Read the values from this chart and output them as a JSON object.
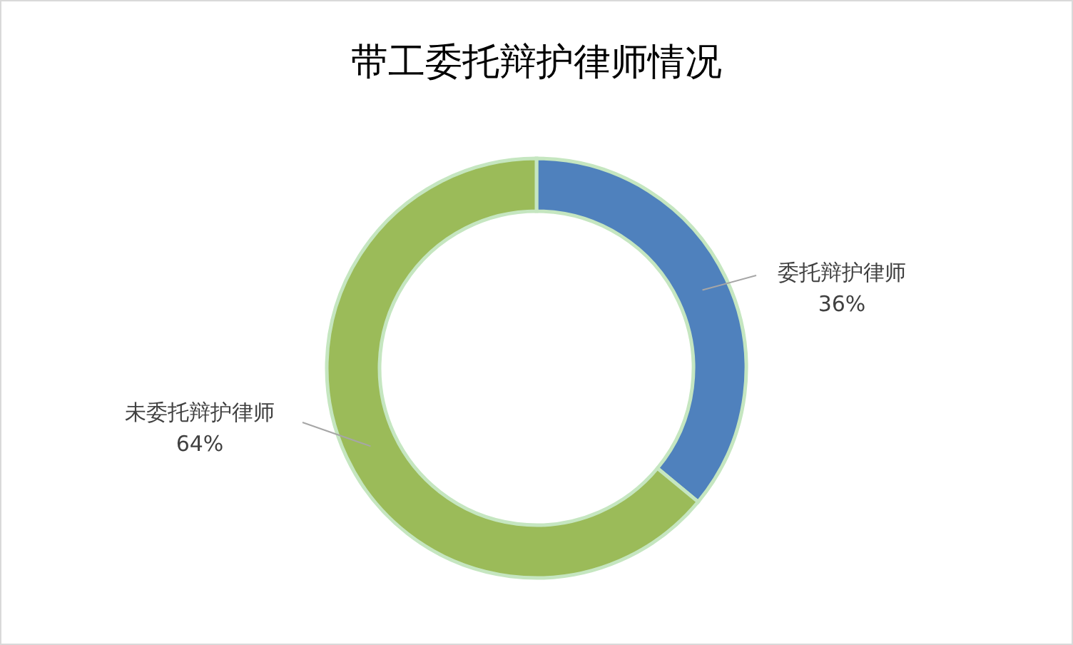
{
  "chart_data": {
    "type": "donut",
    "title": "带工委托辩护律师情况",
    "categories": [
      "委托辩护律师",
      "未委托辩护律师"
    ],
    "values": [
      36,
      64
    ],
    "colors": [
      "#4f81bd",
      "#9bbb59"
    ],
    "value_labels": [
      "36%",
      "64%"
    ]
  }
}
